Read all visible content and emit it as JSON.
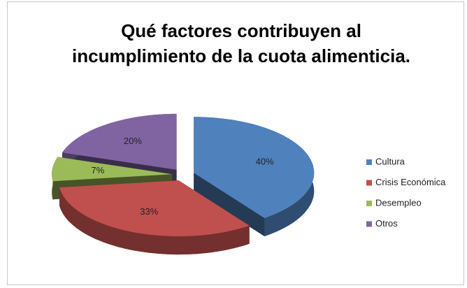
{
  "chart_data": {
    "type": "pie3d",
    "title": "Qué factores contribuyen al incumplimiento de la cuota alimenticia.",
    "categories": [
      "Cultura",
      "Crisis Económica",
      "Desempleo",
      "Otros"
    ],
    "values": [
      40,
      33,
      7,
      20
    ],
    "value_labels": [
      "40%",
      "33%",
      "7%",
      "20%"
    ],
    "colors": [
      "#4f81bd",
      "#c0504d",
      "#9bbb59",
      "#8064a2"
    ],
    "legend": "right"
  }
}
